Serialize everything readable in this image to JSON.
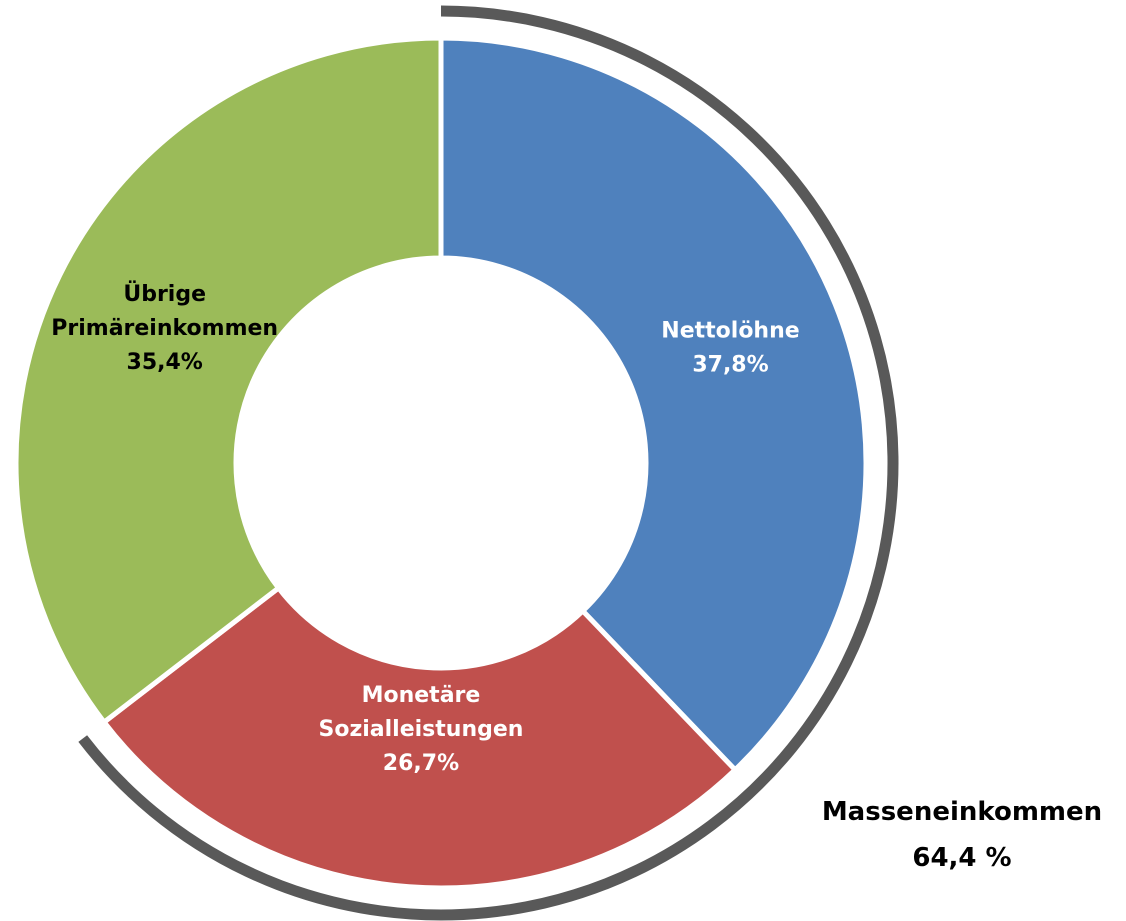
{
  "chart_data": {
    "type": "pie",
    "variant": "donut",
    "slices": [
      {
        "label": [
          "Nettolöhne"
        ],
        "value": 37.8,
        "value_text": "37,8%",
        "color": "#4F81BD",
        "label_color": "#FFFFFF"
      },
      {
        "label": [
          "Monetäre",
          "Sozialleistungen"
        ],
        "value": 26.7,
        "value_text": "26,7%",
        "color": "#C0504D",
        "label_color": "#FFFFFF"
      },
      {
        "label": [
          "Übrige",
          "Primäreinkommen"
        ],
        "value": 35.4,
        "value_text": "35,4%",
        "color": "#9BBB59",
        "label_color": "#000000"
      }
    ],
    "group_annotation": {
      "label": "Masseneinkommen",
      "value": 64.4,
      "value_text": "64,4 %",
      "covers": [
        "Nettolöhne",
        "Monetäre Sozialleistungen"
      ],
      "arc_color": "#595959"
    }
  }
}
